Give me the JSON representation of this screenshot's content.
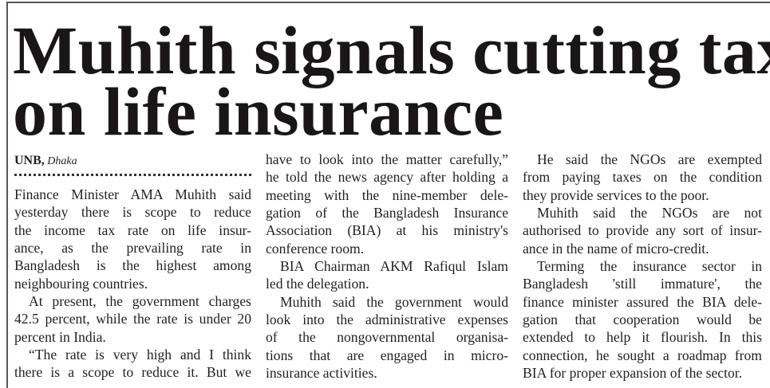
{
  "headline": {
    "line1": "Muhith signals cutting tax",
    "line2": "on life insurance"
  },
  "byline": {
    "agency": "UNB,",
    "place": "Dhaka"
  },
  "columns": [
    [
      [
        "Finance Minister AMA Muhith said",
        "yesterday there is scope to reduce",
        "the income tax rate on life insur-",
        "ance, as the prevailing rate in",
        "Bangladesh is the highest among",
        "neighbouring countries."
      ],
      [
        "At present, the government charges",
        "42.5 percent, while the rate is under 20",
        "percent in India."
      ],
      [
        "“The rate is very high and I think",
        "there is a scope to reduce it. But we"
      ]
    ],
    [
      [
        "have to look into the matter carefully,”",
        "he told the news agency after holding a",
        "meeting with the nine-member dele-",
        "gation of the Bangladesh Insurance",
        "Association (BIA) at his ministry's",
        "conference room."
      ],
      [
        "BIA Chairman AKM Rafiqul Islam",
        "led the delegation."
      ],
      [
        "Muhith said the government would",
        "look into the administrative expenses",
        "of the nongovernmental organisa-",
        "tions that are engaged in micro-",
        "insurance activities."
      ]
    ],
    [
      [
        "He said the NGOs are exempted",
        "from paying taxes on the condition",
        "they provide services to the poor."
      ],
      [
        "Muhith said the NGOs are not",
        "authorised to provide any sort of insur-",
        "ance in the name of micro-credit."
      ],
      [
        "Terming the insurance sector in",
        "Bangladesh 'still immature', the",
        "finance minister assured the BIA dele-",
        "gation that cooperation would be",
        "extended to help it flourish. In this",
        "connection, he sought a roadmap from",
        "BIA for proper expansion of the sector."
      ]
    ]
  ]
}
